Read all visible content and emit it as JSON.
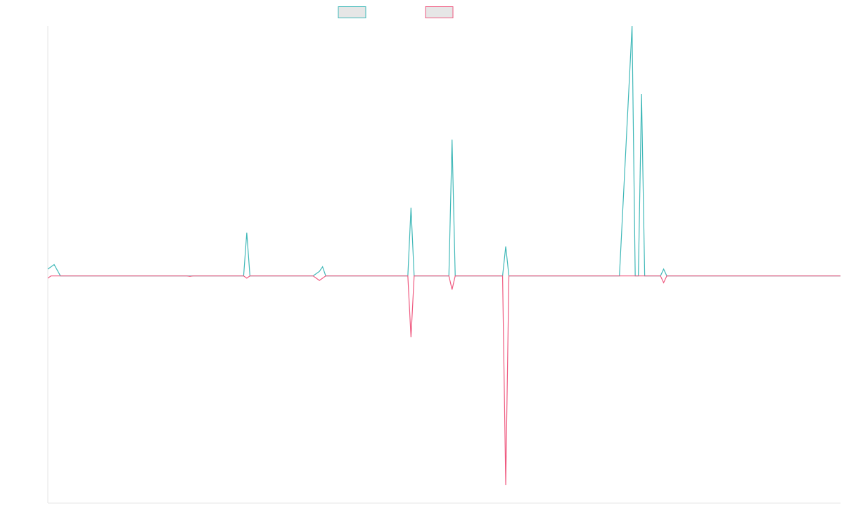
{
  "chart_data": {
    "type": "line",
    "ylim": [
      -1.0,
      1.1
    ],
    "xlim": [
      0,
      251
    ],
    "grid": false,
    "legend": {
      "placement": "top-center",
      "entries": 2
    },
    "colors": {
      "series_a": "#3fb8b8",
      "series_b": "#ef5a80",
      "legend_fill": "#e6e6e6",
      "axis": "#e6e6e6"
    },
    "series": [
      {
        "points": [
          [
            0,
            0.03
          ],
          [
            2,
            0.05
          ],
          [
            4,
            0.0
          ],
          [
            4,
            0.0
          ],
          [
            16,
            0.0
          ],
          [
            18,
            0.0
          ],
          [
            34,
            0.0
          ],
          [
            36,
            0.0
          ],
          [
            44,
            0.0
          ],
          [
            46,
            0.0
          ],
          [
            62,
            0.0
          ],
          [
            63,
            0.19
          ],
          [
            64,
            0.0
          ],
          [
            80,
            0.0
          ],
          [
            84,
            0.0
          ],
          [
            86,
            0.02
          ],
          [
            87,
            0.04
          ],
          [
            88,
            0.0
          ],
          [
            114,
            0.0
          ],
          [
            115,
            0.3
          ],
          [
            116,
            0.0
          ],
          [
            127,
            0.0
          ],
          [
            128,
            0.6
          ],
          [
            129,
            0.0
          ],
          [
            144,
            0.0
          ],
          [
            145,
            0.13
          ],
          [
            146,
            0.0
          ],
          [
            166,
            0.0
          ],
          [
            170,
            0.0
          ],
          [
            181,
            0.0
          ],
          [
            185,
            1.1
          ],
          [
            186,
            0.0
          ],
          [
            187,
            0.0
          ],
          [
            188,
            0.8
          ],
          [
            189,
            0.0
          ],
          [
            194,
            0.0
          ],
          [
            195,
            0.03
          ],
          [
            196,
            0.0
          ],
          [
            204,
            0.0
          ],
          [
            251,
            0.0
          ]
        ]
      },
      {
        "points": [
          [
            0,
            -0.01
          ],
          [
            1,
            0.0
          ],
          [
            3,
            0.0
          ],
          [
            16,
            0.0
          ],
          [
            18,
            0.0
          ],
          [
            34,
            0.0
          ],
          [
            36,
            0.0
          ],
          [
            44,
            0.0
          ],
          [
            45,
            -0.002
          ],
          [
            46,
            0.0
          ],
          [
            62,
            0.0
          ],
          [
            63,
            -0.01
          ],
          [
            64,
            0.0
          ],
          [
            80,
            0.0
          ],
          [
            84,
            0.0
          ],
          [
            86,
            -0.02
          ],
          [
            88,
            0.0
          ],
          [
            114,
            0.0
          ],
          [
            115,
            -0.27
          ],
          [
            116,
            0.0
          ],
          [
            127,
            0.0
          ],
          [
            128,
            -0.06
          ],
          [
            129,
            0.0
          ],
          [
            132,
            0.0
          ],
          [
            144,
            0.0
          ],
          [
            145,
            -0.92
          ],
          [
            146,
            0.0
          ],
          [
            166,
            0.0
          ],
          [
            170,
            0.0
          ],
          [
            194,
            0.0
          ],
          [
            195,
            -0.03
          ],
          [
            196,
            0.0
          ],
          [
            204,
            0.0
          ],
          [
            251,
            0.0
          ]
        ]
      }
    ]
  }
}
